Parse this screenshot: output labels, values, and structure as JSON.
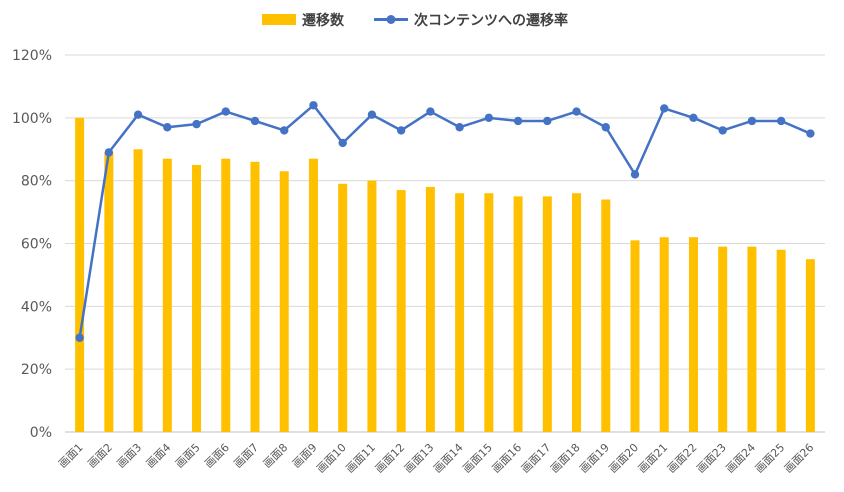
{
  "chart_data": {
    "type": "bar+line",
    "title": "",
    "xlabel": "",
    "ylabel": "",
    "ylim": [
      0,
      1.2
    ],
    "y_ticks": [
      "0%",
      "20%",
      "40%",
      "60%",
      "80%",
      "100%",
      "120%"
    ],
    "grid": true,
    "legend_position": "top",
    "categories": [
      "画面1",
      "画面2",
      "画面3",
      "画面4",
      "画面5",
      "画面6",
      "画面7",
      "画面8",
      "画面9",
      "画面10",
      "画面11",
      "画面12",
      "画面13",
      "画面14",
      "画面15",
      "画面16",
      "画面17",
      "画面18",
      "画面19",
      "画面20",
      "画面21",
      "画面22",
      "画面23",
      "画面24",
      "画面25",
      "画面26"
    ],
    "series": [
      {
        "name": "遷移数",
        "type": "bar",
        "color": "#FFC000",
        "values": [
          1.0,
          0.89,
          0.9,
          0.87,
          0.85,
          0.87,
          0.86,
          0.83,
          0.87,
          0.79,
          0.8,
          0.77,
          0.78,
          0.76,
          0.76,
          0.75,
          0.75,
          0.76,
          0.74,
          0.61,
          0.62,
          0.62,
          0.59,
          0.59,
          0.58,
          0.55
        ]
      },
      {
        "name": "次コンテンツへの遷移率",
        "type": "line",
        "color": "#4472C4",
        "values": [
          0.3,
          0.89,
          1.01,
          0.97,
          0.98,
          1.02,
          0.99,
          0.96,
          1.04,
          0.92,
          1.01,
          0.96,
          1.02,
          0.97,
          1.0,
          0.99,
          0.99,
          1.02,
          0.97,
          0.82,
          1.03,
          1.0,
          0.96,
          0.99,
          0.99,
          0.95
        ]
      }
    ]
  }
}
